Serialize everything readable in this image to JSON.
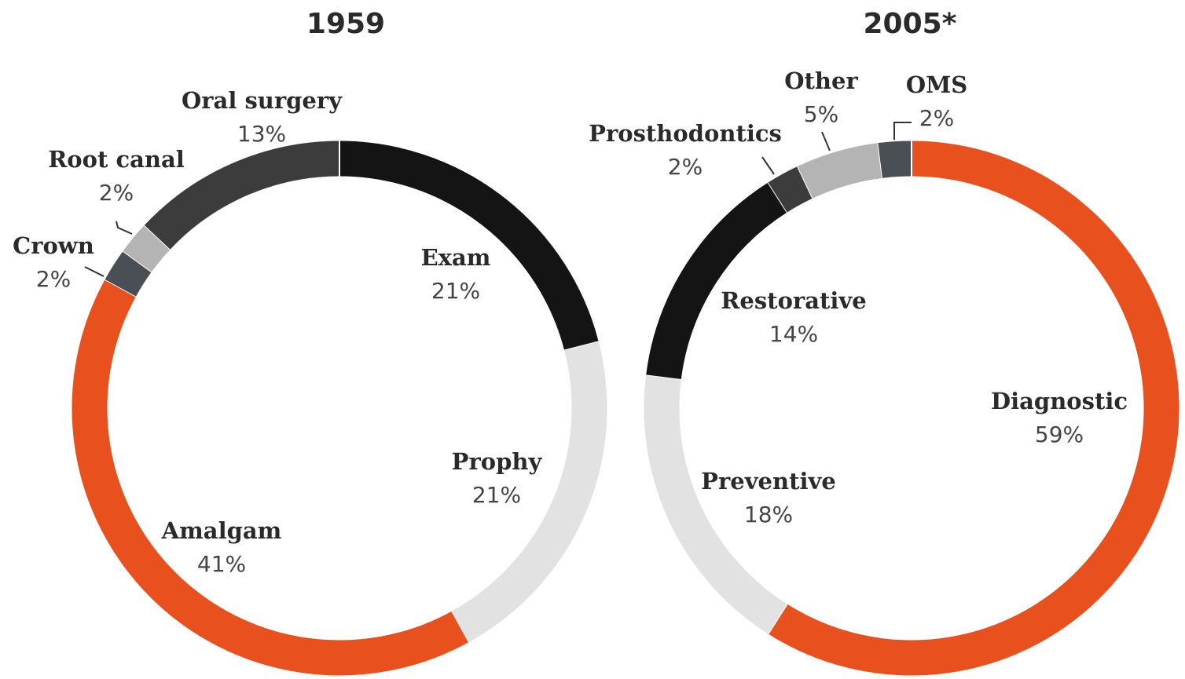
{
  "chart_data": [
    {
      "type": "donut",
      "title": "1959",
      "categories": [
        "Exam",
        "Prophy",
        "Amalgam",
        "Crown",
        "Root canal",
        "Oral surgery"
      ],
      "values": [
        21,
        21,
        41,
        2,
        2,
        13
      ],
      "value_labels": [
        "21%",
        "21%",
        "41%",
        "2%",
        "2%",
        "13%"
      ],
      "colors": [
        "#141414",
        "#e2e2e2",
        "#e8501e",
        "#4a4f55",
        "#b4b4b4",
        "#3c3c3c"
      ]
    },
    {
      "type": "donut",
      "title": "2005*",
      "categories": [
        "Diagnostic",
        "Preventive",
        "Restorative",
        "Prosthodontics",
        "Other",
        "OMS"
      ],
      "values": [
        59,
        18,
        14,
        2,
        5,
        2
      ],
      "value_labels": [
        "59%",
        "18%",
        "14%",
        "2%",
        "5%",
        "2%"
      ],
      "colors": [
        "#e8501e",
        "#e2e2e2",
        "#141414",
        "#3c3c3c",
        "#b4b4b4",
        "#4a4f55"
      ]
    }
  ]
}
